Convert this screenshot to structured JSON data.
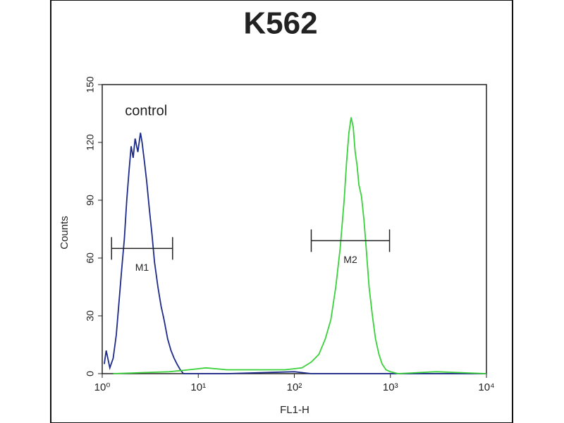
{
  "chart_data": {
    "type": "line",
    "title": "K562",
    "xlabel": "FL1-H",
    "ylabel": "Counts",
    "xscale": "log",
    "xlim": [
      1,
      10000
    ],
    "xticks": [
      {
        "value": 1,
        "label": "10⁰"
      },
      {
        "value": 10,
        "label": "10¹"
      },
      {
        "value": 100,
        "label": "10²"
      },
      {
        "value": 1000,
        "label": "10³"
      },
      {
        "value": 10000,
        "label": "10⁴"
      }
    ],
    "ylim": [
      0,
      150
    ],
    "yticks": [
      0,
      30,
      60,
      90,
      120,
      150
    ],
    "series": [
      {
        "name": "control",
        "color": "#1c2a8a",
        "x": [
          1.05,
          1.1,
          1.2,
          1.3,
          1.4,
          1.5,
          1.6,
          1.7,
          1.8,
          1.9,
          2.0,
          2.1,
          2.2,
          2.35,
          2.5,
          2.6,
          2.75,
          2.9,
          3.1,
          3.3,
          3.5,
          3.8,
          4.1,
          4.4,
          4.8,
          5.2,
          5.6,
          6.0,
          6.5,
          7,
          20,
          100,
          150,
          1000,
          10000
        ],
        "values": [
          5,
          12,
          3,
          8,
          20,
          38,
          55,
          70,
          90,
          105,
          118,
          112,
          122,
          115,
          125,
          120,
          110,
          100,
          85,
          72,
          58,
          45,
          35,
          28,
          18,
          12,
          8,
          5,
          2,
          0,
          0,
          1,
          0,
          0,
          0
        ]
      },
      {
        "color": "#3ad13a",
        "x": [
          1.3,
          5,
          8,
          12,
          20,
          40,
          80,
          120,
          150,
          180,
          210,
          240,
          270,
          300,
          330,
          350,
          370,
          390,
          410,
          430,
          450,
          470,
          500,
          530,
          560,
          600,
          650,
          700,
          760,
          820,
          900,
          1000,
          1200,
          3000,
          10000
        ],
        "values": [
          0,
          1,
          2,
          3,
          2,
          2,
          2,
          3,
          6,
          10,
          18,
          28,
          45,
          65,
          90,
          110,
          125,
          133,
          128,
          115,
          108,
          98,
          92,
          80,
          65,
          45,
          30,
          18,
          10,
          5,
          2,
          1,
          0,
          1,
          0
        ]
      }
    ],
    "markers": [
      {
        "label": "M1",
        "range": [
          1.25,
          5.4
        ],
        "y": 65
      },
      {
        "label": "M2",
        "range": [
          150,
          980
        ],
        "y": 69
      }
    ]
  }
}
